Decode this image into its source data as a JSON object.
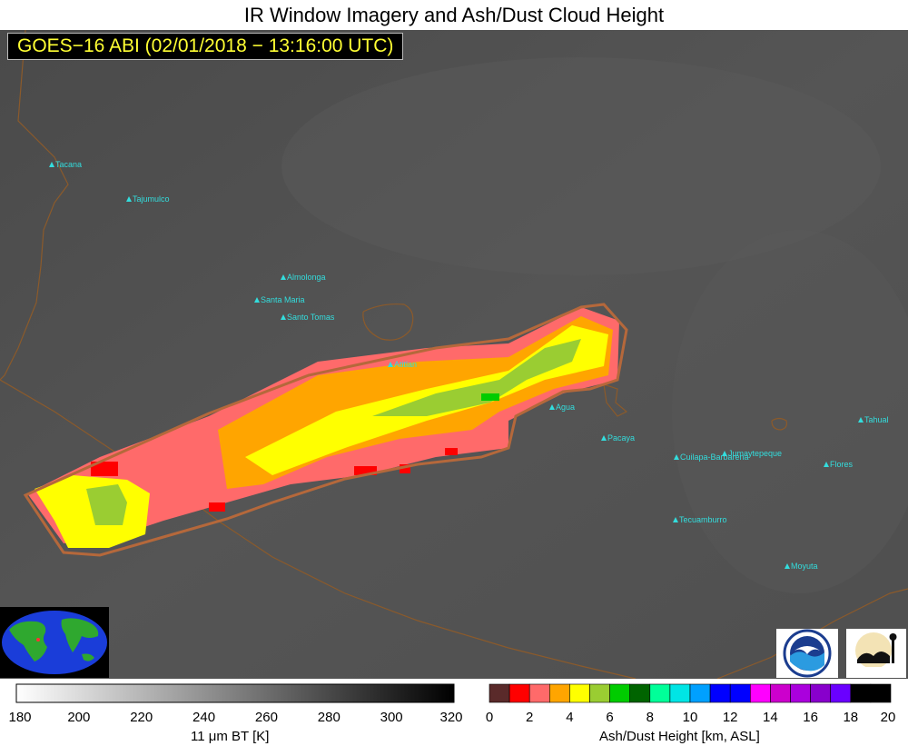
{
  "title": "IR Window Imagery and Ash/Dust Cloud Height",
  "subtitle": "GOES−16 ABI (02/01/2018 − 13:16:00 UTC)",
  "volcanoes": [
    {
      "name": "Tacana"
    },
    {
      "name": "Tajumulco"
    },
    {
      "name": "Almolonga"
    },
    {
      "name": "Santa Maria"
    },
    {
      "name": "Santo Tomas"
    },
    {
      "name": "Atitlan"
    },
    {
      "name": "Agua"
    },
    {
      "name": "Pacaya"
    },
    {
      "name": "Cuilapa-Barbarena"
    },
    {
      "name": "Jumaytepeque"
    },
    {
      "name": "Tecuamburro"
    },
    {
      "name": "Moyuta"
    },
    {
      "name": "Flores"
    },
    {
      "name": "Tahual"
    }
  ],
  "ir_colorbar": {
    "ticks": [
      "180",
      "200",
      "220",
      "240",
      "260",
      "280",
      "300",
      "320"
    ],
    "label": "11 μm BT [K]"
  },
  "ash_colorbar": {
    "ticks": [
      "0",
      "2",
      "4",
      "6",
      "8",
      "10",
      "12",
      "14",
      "16",
      "18",
      "20"
    ],
    "colors": [
      "#5a2a2a",
      "#ff0000",
      "#ff6a6a",
      "#ffa500",
      "#ffff00",
      "#9acd32",
      "#00cc00",
      "#006400",
      "#00ff99",
      "#00e5e5",
      "#00a0ff",
      "#0000ff",
      "#0000ff",
      "#ff00ff",
      "#cc00cc",
      "#aa00dd",
      "#8800cc",
      "#6a00ff",
      "#000000",
      "#000000"
    ],
    "label": "Ash/Dust Height [km, ASL]"
  },
  "logos": [
    "noaa-logo",
    "cimss-logo"
  ]
}
